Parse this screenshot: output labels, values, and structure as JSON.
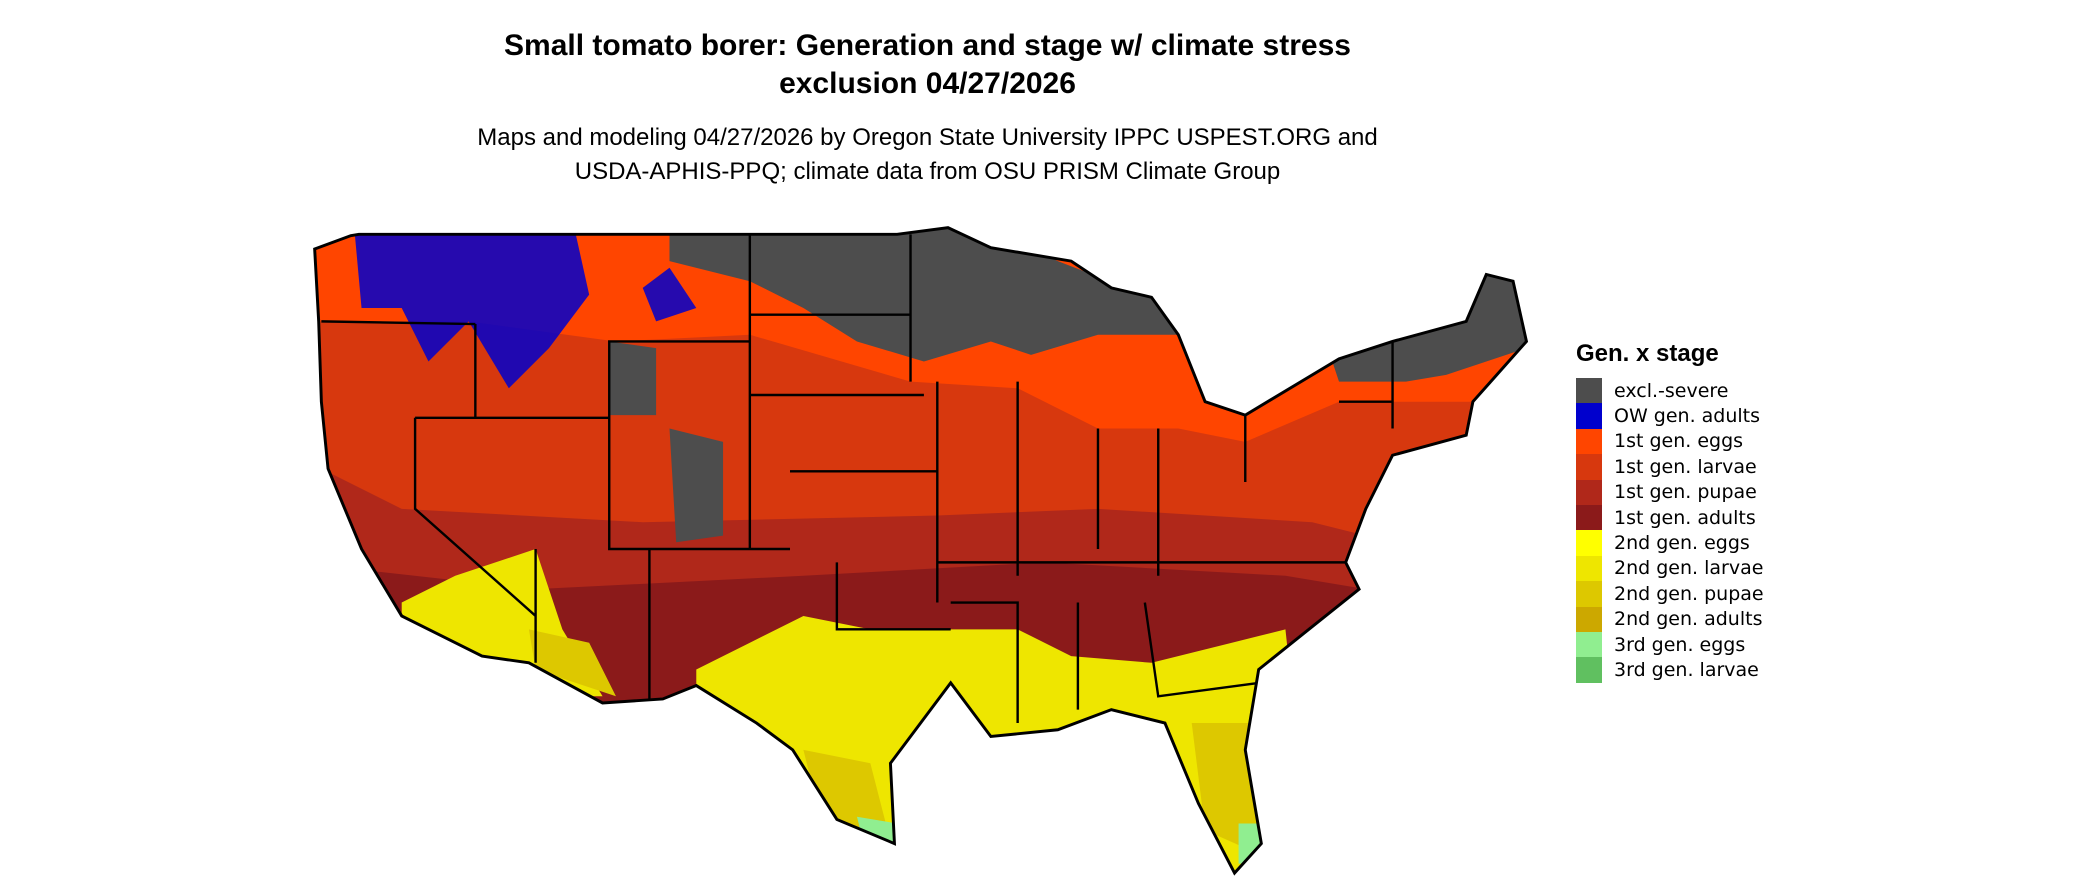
{
  "title": {
    "line1": "Small tomato borer: Generation and stage w/ climate stress",
    "line2": "exclusion 04/27/2026"
  },
  "subtitle": {
    "line1": "Maps and modeling 04/27/2026 by Oregon State University IPPC USPEST.ORG and",
    "line2": "USDA-APHIS-PPQ; climate data from OSU PRISM Climate Group"
  },
  "legend": {
    "title": "Gen. x stage",
    "items": [
      {
        "label": "excl.-severe",
        "color": "#4d4d4d"
      },
      {
        "label": "OW gen. adults",
        "color": "#0000cd"
      },
      {
        "label": "1st gen. eggs",
        "color": "#ff4500"
      },
      {
        "label": "1st gen. larvae",
        "color": "#d7380e"
      },
      {
        "label": "1st gen. pupae",
        "color": "#b0281a"
      },
      {
        "label": "1st gen. adults",
        "color": "#8b1a1a"
      },
      {
        "label": "2nd gen. eggs",
        "color": "#ffff00"
      },
      {
        "label": "2nd gen. larvae",
        "color": "#eee600"
      },
      {
        "label": "2nd gen. pupae",
        "color": "#ddc800"
      },
      {
        "label": "2nd gen. adults",
        "color": "#cca800"
      },
      {
        "label": "3rd gen. eggs",
        "color": "#90ee90"
      },
      {
        "label": "3rd gen. larvae",
        "color": "#60c060"
      }
    ]
  }
}
